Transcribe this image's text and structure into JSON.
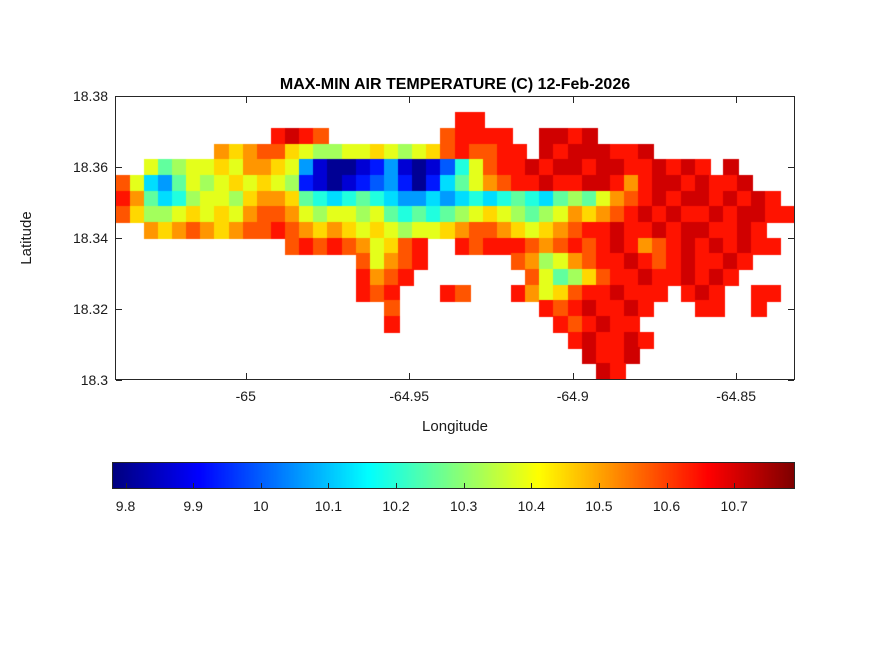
{
  "chart_data": {
    "type": "heatmap",
    "title": "MAX-MIN AIR TEMPERATURE (C) 12-Feb-2026",
    "xlabel": "Longitude",
    "ylabel": "Latitude",
    "xlim": [
      -65.04,
      -64.832
    ],
    "ylim": [
      18.3,
      18.38
    ],
    "xticks": [
      -65,
      -64.95,
      -64.9,
      -64.85
    ],
    "xtick_labels": [
      "-65",
      "-64.95",
      "-64.9",
      "-64.85"
    ],
    "yticks": [
      18.3,
      18.32,
      18.34,
      18.36,
      18.38
    ],
    "ytick_labels": [
      "18.3",
      "18.32",
      "18.34",
      "18.36",
      "18.38"
    ],
    "colormap": "jet",
    "clim": [
      9.78,
      10.79
    ],
    "grid_on": false,
    "legend": "none",
    "colorbar": {
      "orientation": "horizontal",
      "location": "below-axes",
      "ticks": [
        9.8,
        9.9,
        10,
        10.1,
        10.2,
        10.3,
        10.4,
        10.5,
        10.6,
        10.7
      ],
      "tick_labels": [
        "9.8",
        "9.9",
        "10",
        "10.1",
        "10.2",
        "10.3",
        "10.4",
        "10.5",
        "10.6",
        "10.7"
      ]
    },
    "grid_encoding": {
      "ocean_char": ".",
      "value_chars": "0123456789abcdef",
      "value_min": 9.8,
      "value_step": 0.065,
      "note": "each char is one cell; value = value_min + index(char)*value_step; '.' = no data (sea)"
    },
    "grid": [
      "................................................",
      "........................dd......................",
      "...........dedc........cdddd..eede..............",
      ".......babcca98899a989acdccdd.edeeedde..........",
      "..97899a9bba94100124101369cddedeedeeddeded.e....",
      "c9547989a9a982101234202579bcddeddeedbdeededde...",
      "db7568998abba7656765445456567657879bcdedeededed.",
      "ca889a9a9bccb9899897676789a98789babcdededdedeedd",
      "..babcbabccdcbaba9a9899abccba9abcddeddedeedded..",
      "............cdcdcb9acd..dcdddcbcdcdedbcdedededd.",
      ".................c9bcd......cb89bcddedcdedded...",
      ".................dbcd........c978acddeddeded....",
      ".................dcd...dc...db9acddeddd.ded..dd.",
      "...................c..........dcdedded...dd..d..",
      "...................d...........dcdedd...........",
      "................................dedded..........",
      ".................................edde...........",
      "..................................ed............"
    ]
  }
}
